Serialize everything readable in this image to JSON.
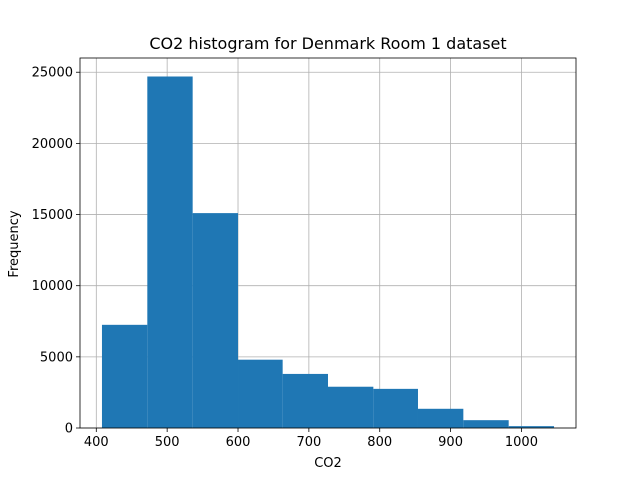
{
  "chart_data": {
    "type": "bar",
    "title": "CO2 histogram for Denmark Room 1 dataset",
    "xlabel": "CO2",
    "ylabel": "Frequency",
    "xlim": [
      377,
      1077
    ],
    "ylim": [
      0,
      26000
    ],
    "grid": true,
    "bar_color": "#1f77b4",
    "x_ticks": [
      400,
      500,
      600,
      700,
      800,
      900,
      1000
    ],
    "y_ticks": [
      0,
      5000,
      10000,
      15000,
      20000,
      25000
    ],
    "bins": [
      {
        "start": 408,
        "end": 472,
        "value": 7250
      },
      {
        "start": 472,
        "end": 536,
        "value": 24700
      },
      {
        "start": 536,
        "end": 600,
        "value": 15100
      },
      {
        "start": 600,
        "end": 663,
        "value": 4800
      },
      {
        "start": 663,
        "end": 727,
        "value": 3800
      },
      {
        "start": 727,
        "end": 791,
        "value": 2900
      },
      {
        "start": 791,
        "end": 854,
        "value": 2750
      },
      {
        "start": 854,
        "end": 918,
        "value": 1350
      },
      {
        "start": 918,
        "end": 982,
        "value": 550
      },
      {
        "start": 982,
        "end": 1046,
        "value": 130
      }
    ]
  }
}
